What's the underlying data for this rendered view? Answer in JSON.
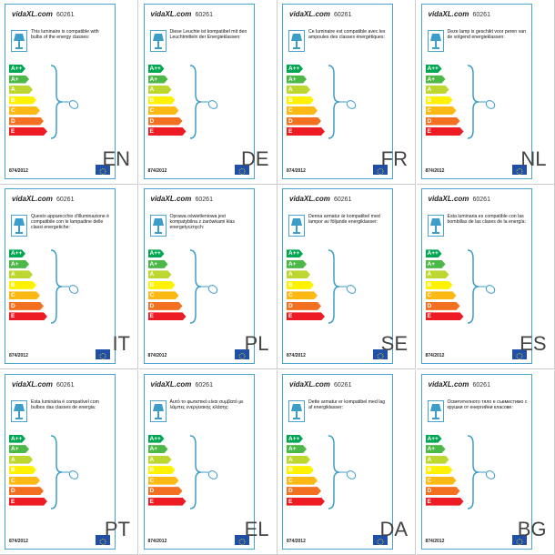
{
  "brand": "vidaXL.com",
  "model": "60261",
  "regulation": "874/2012",
  "classes": [
    "A++",
    "A+",
    "A",
    "B",
    "C",
    "D",
    "E"
  ],
  "labels": [
    {
      "code": "EN",
      "text": "This luminaire is compatible with bulbs of the energy classes:"
    },
    {
      "code": "DE",
      "text": "Diese Leuchte ist kompatibel mit den Leuchtmitteln der Energieklassen:"
    },
    {
      "code": "FR",
      "text": "Ce luminaire est compatible avec les ampoules des classes énergétiques:"
    },
    {
      "code": "NL",
      "text": "Deze lamp is geschikt voor peren van de volgend energieklassen:"
    },
    {
      "code": "IT",
      "text": "Questo apparecchio d'illuminazione è compatibile con le lampadine delle classi energetiche:"
    },
    {
      "code": "PL",
      "text": "Oprawa oświetleniowa jest kompatybilna z żarówkami klas energetycznych:"
    },
    {
      "code": "SE",
      "text": "Denna armatur är kompatibel med lampor av följande energiklasser:"
    },
    {
      "code": "ES",
      "text": "Esta luminaria es compatible con las bombillas de las clases de la energía:"
    },
    {
      "code": "PT",
      "text": "Esta luminária é compatível com bulbos das classes de energia:"
    },
    {
      "code": "EL",
      "text": "Αυτό το φωτιστικό είναι συμβατό με λάμπες ενεργειακής κλάσης:"
    },
    {
      "code": "DA",
      "text": "Dette armatur er kompatibel med lag af energiklasser:"
    },
    {
      "code": "BG",
      "text": "Осветителното тяло е съвместимо с крушки от енергийни класове:"
    }
  ]
}
